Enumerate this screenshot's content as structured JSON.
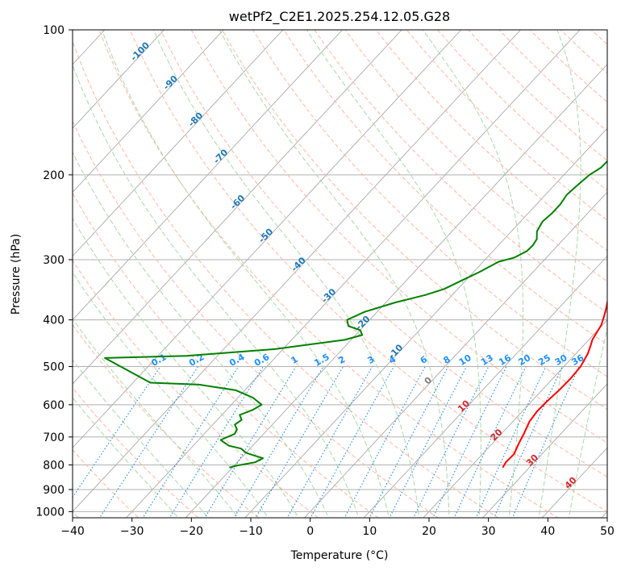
{
  "chart_data": {
    "type": "line",
    "title": "wetPf2_C2E1.2025.254.12.05.G28",
    "xlabel": "Temperature (°C)",
    "ylabel": "Pressure (hPa)",
    "xlim": [
      -40,
      50
    ],
    "ylim": [
      1030,
      100
    ],
    "y_scale": "log",
    "grid": true,
    "x_ticks": [
      "−40",
      "−30",
      "−20",
      "−10",
      "0",
      "10",
      "20",
      "30",
      "40",
      "50"
    ],
    "x_tick_values": [
      -40,
      -30,
      -20,
      -10,
      0,
      10,
      20,
      30,
      40,
      50
    ],
    "y_ticks": [
      "100",
      "200",
      "300",
      "400",
      "500",
      "600",
      "700",
      "800",
      "900",
      "1000"
    ],
    "y_tick_values": [
      100,
      200,
      300,
      400,
      500,
      600,
      700,
      800,
      900,
      1000
    ],
    "series": [
      {
        "color": "#ff0000",
        "points": [
          [
            25.5,
            810
          ],
          [
            25.2,
            790
          ],
          [
            25.3,
            760
          ],
          [
            24.4,
            720
          ],
          [
            23.8,
            690
          ],
          [
            22.8,
            650
          ],
          [
            22.5,
            620
          ],
          [
            22.6,
            590
          ],
          [
            22.9,
            560
          ],
          [
            23.0,
            530
          ],
          [
            22.8,
            500
          ],
          [
            22.0,
            470
          ],
          [
            21.1,
            450
          ],
          [
            20.6,
            440
          ],
          [
            20.2,
            425
          ],
          [
            19.8,
            410
          ],
          [
            19.0,
            395
          ],
          [
            18.1,
            380
          ],
          [
            16.7,
            360
          ],
          [
            14.9,
            340
          ],
          [
            13.1,
            320
          ],
          [
            11.4,
            300
          ],
          [
            10.6,
            290
          ],
          [
            9.4,
            280
          ],
          [
            7.8,
            265
          ],
          [
            6.5,
            250
          ],
          [
            5.6,
            235
          ],
          [
            4.5,
            220
          ],
          [
            3.3,
            205
          ],
          [
            1.8,
            185
          ],
          [
            0.3,
            165
          ],
          [
            -0.6,
            150
          ],
          [
            -0.9,
            140
          ],
          [
            -1.0,
            130
          ],
          [
            -0.8,
            120
          ],
          [
            -0.2,
            113
          ],
          [
            1.2,
            106
          ],
          [
            2.6,
            102
          ],
          [
            3.5,
            100
          ]
        ]
      },
      {
        "color": "#008000",
        "points": [
          [
            -20.5,
            810
          ],
          [
            -19.6,
            803
          ],
          [
            -17.0,
            790
          ],
          [
            -16.3,
            775
          ],
          [
            -18.2,
            765
          ],
          [
            -20.0,
            755
          ],
          [
            -21.5,
            740
          ],
          [
            -24.0,
            730
          ],
          [
            -26.3,
            710
          ],
          [
            -24.9,
            690
          ],
          [
            -25.2,
            675
          ],
          [
            -26.3,
            660
          ],
          [
            -25.9,
            645
          ],
          [
            -27.0,
            630
          ],
          [
            -25.6,
            615
          ],
          [
            -24.9,
            600
          ],
          [
            -27.5,
            580
          ],
          [
            -31.5,
            560
          ],
          [
            -38.6,
            545
          ],
          [
            -47.1,
            540
          ],
          [
            -58.6,
            480
          ],
          [
            -45.2,
            475
          ],
          [
            -31.4,
            460
          ],
          [
            -21.1,
            440
          ],
          [
            -18.9,
            430
          ],
          [
            -20.0,
            420
          ],
          [
            -22.6,
            412
          ],
          [
            -23.8,
            400
          ],
          [
            -22.1,
            385
          ],
          [
            -18.4,
            368
          ],
          [
            -14.5,
            355
          ],
          [
            -12.3,
            345
          ],
          [
            -10.5,
            330
          ],
          [
            -9.0,
            318
          ],
          [
            -7.4,
            303
          ],
          [
            -5.4,
            297
          ],
          [
            -4.3,
            288
          ],
          [
            -4.2,
            280
          ],
          [
            -4.5,
            272
          ],
          [
            -5.7,
            262
          ],
          [
            -6.3,
            250
          ],
          [
            -6.0,
            240
          ],
          [
            -6.0,
            230
          ],
          [
            -6.4,
            220
          ],
          [
            -6.1,
            210
          ],
          [
            -5.7,
            200
          ],
          [
            -4.9,
            193
          ],
          [
            -4.8,
            182
          ],
          [
            -4.7,
            175
          ],
          [
            -4.1,
            165
          ],
          [
            -3.8,
            155
          ],
          [
            -3.0,
            145
          ],
          [
            -2.4,
            135
          ],
          [
            -2.0,
            127
          ],
          [
            -1.2,
            118
          ],
          [
            -0.3,
            110
          ],
          [
            1.0,
            104
          ],
          [
            2.1,
            100
          ]
        ]
      }
    ],
    "background_lines": {
      "isotherms_skew_gray": true,
      "dry_adiabats_color": "#ffb5a0",
      "moist_adiabats_color": "#a8d8a8",
      "mixing_ratio_color": "#1e88e5",
      "dendritic_curve_color": "#deb887"
    },
    "mixing_ratio_labels": [
      "0.1",
      "0.2",
      "0.4",
      "0.6",
      "1",
      "1.5",
      "2",
      "3",
      "4",
      "6",
      "8",
      "10",
      "13",
      "16",
      "20",
      "25",
      "30",
      "36"
    ],
    "mixing_ratio_values": [
      0.1,
      0.2,
      0.4,
      0.6,
      1,
      1.5,
      2,
      3,
      4,
      6,
      8,
      10,
      13,
      16,
      20,
      25,
      30,
      36
    ],
    "wet_bulb_labels_blue": [
      {
        "text": "-100",
        "t": -100,
        "p": 112
      },
      {
        "text": "-90",
        "t": -90,
        "p": 130
      },
      {
        "text": "-80",
        "t": -80,
        "p": 155
      },
      {
        "text": "-70",
        "t": -70,
        "p": 185
      },
      {
        "text": "-60",
        "t": -60,
        "p": 230
      },
      {
        "text": "-50",
        "t": -50,
        "p": 270
      },
      {
        "text": "-40",
        "t": -40,
        "p": 310
      },
      {
        "text": "-30",
        "t": -30,
        "p": 360
      },
      {
        "text": "-20",
        "t": -20,
        "p": 410
      },
      {
        "text": "-10",
        "t": -10,
        "p": 470
      }
    ],
    "wet_bulb_labels_red": [
      {
        "text": "10",
        "t": 10,
        "p": 610
      },
      {
        "text": "20",
        "t": 20,
        "p": 700
      },
      {
        "text": "30",
        "t": 30,
        "p": 790
      },
      {
        "text": "40",
        "t": 40,
        "p": 880
      }
    ],
    "zero_label": {
      "text": "0",
      "t": 0,
      "p": 540
    }
  }
}
